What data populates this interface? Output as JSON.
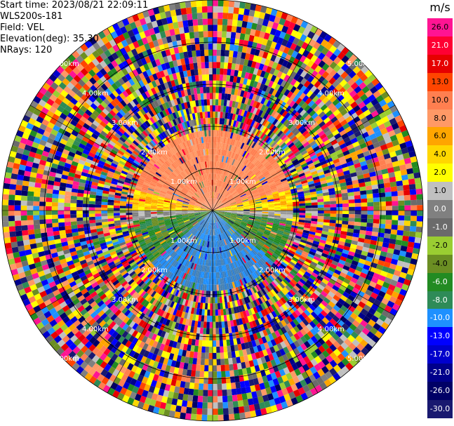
{
  "header": {
    "start_time": "Start time: 2023/08/21 22:09:11",
    "instrument": "WLS200s-181",
    "field": "Field: VEL",
    "elevation": "Elevation(deg): 35.30",
    "nrays": "NRays: 120"
  },
  "range_labels": [
    "1.00km",
    "2.00km",
    "3.00km",
    "4.00km",
    "5.00km"
  ],
  "colorbar": {
    "unit": "m/s",
    "ticks": [
      "26.0",
      "21.0",
      "17.0",
      "13.0",
      "10.0",
      "8.0",
      "6.0",
      "4.0",
      "2.0",
      "1.0",
      "0.0",
      "-1.0",
      "-2.0",
      "-4.0",
      "-6.0",
      "-8.0",
      "-10.0",
      "-13.0",
      "-17.0",
      "-21.0",
      "-26.0",
      "-30.0"
    ],
    "colors": [
      "#ff1493",
      "#ff0033",
      "#e60000",
      "#ff4500",
      "#ff7f50",
      "#ff9966",
      "#ffa500",
      "#ffd700",
      "#ffff00",
      "#c0c0c0",
      "#808080",
      "#6b6b6b",
      "#9acd32",
      "#6b8e23",
      "#228b22",
      "#2e8b57",
      "#1e90ff",
      "#0000ff",
      "#0000cd",
      "#00008b",
      "#000066",
      "#191970"
    ]
  }
}
